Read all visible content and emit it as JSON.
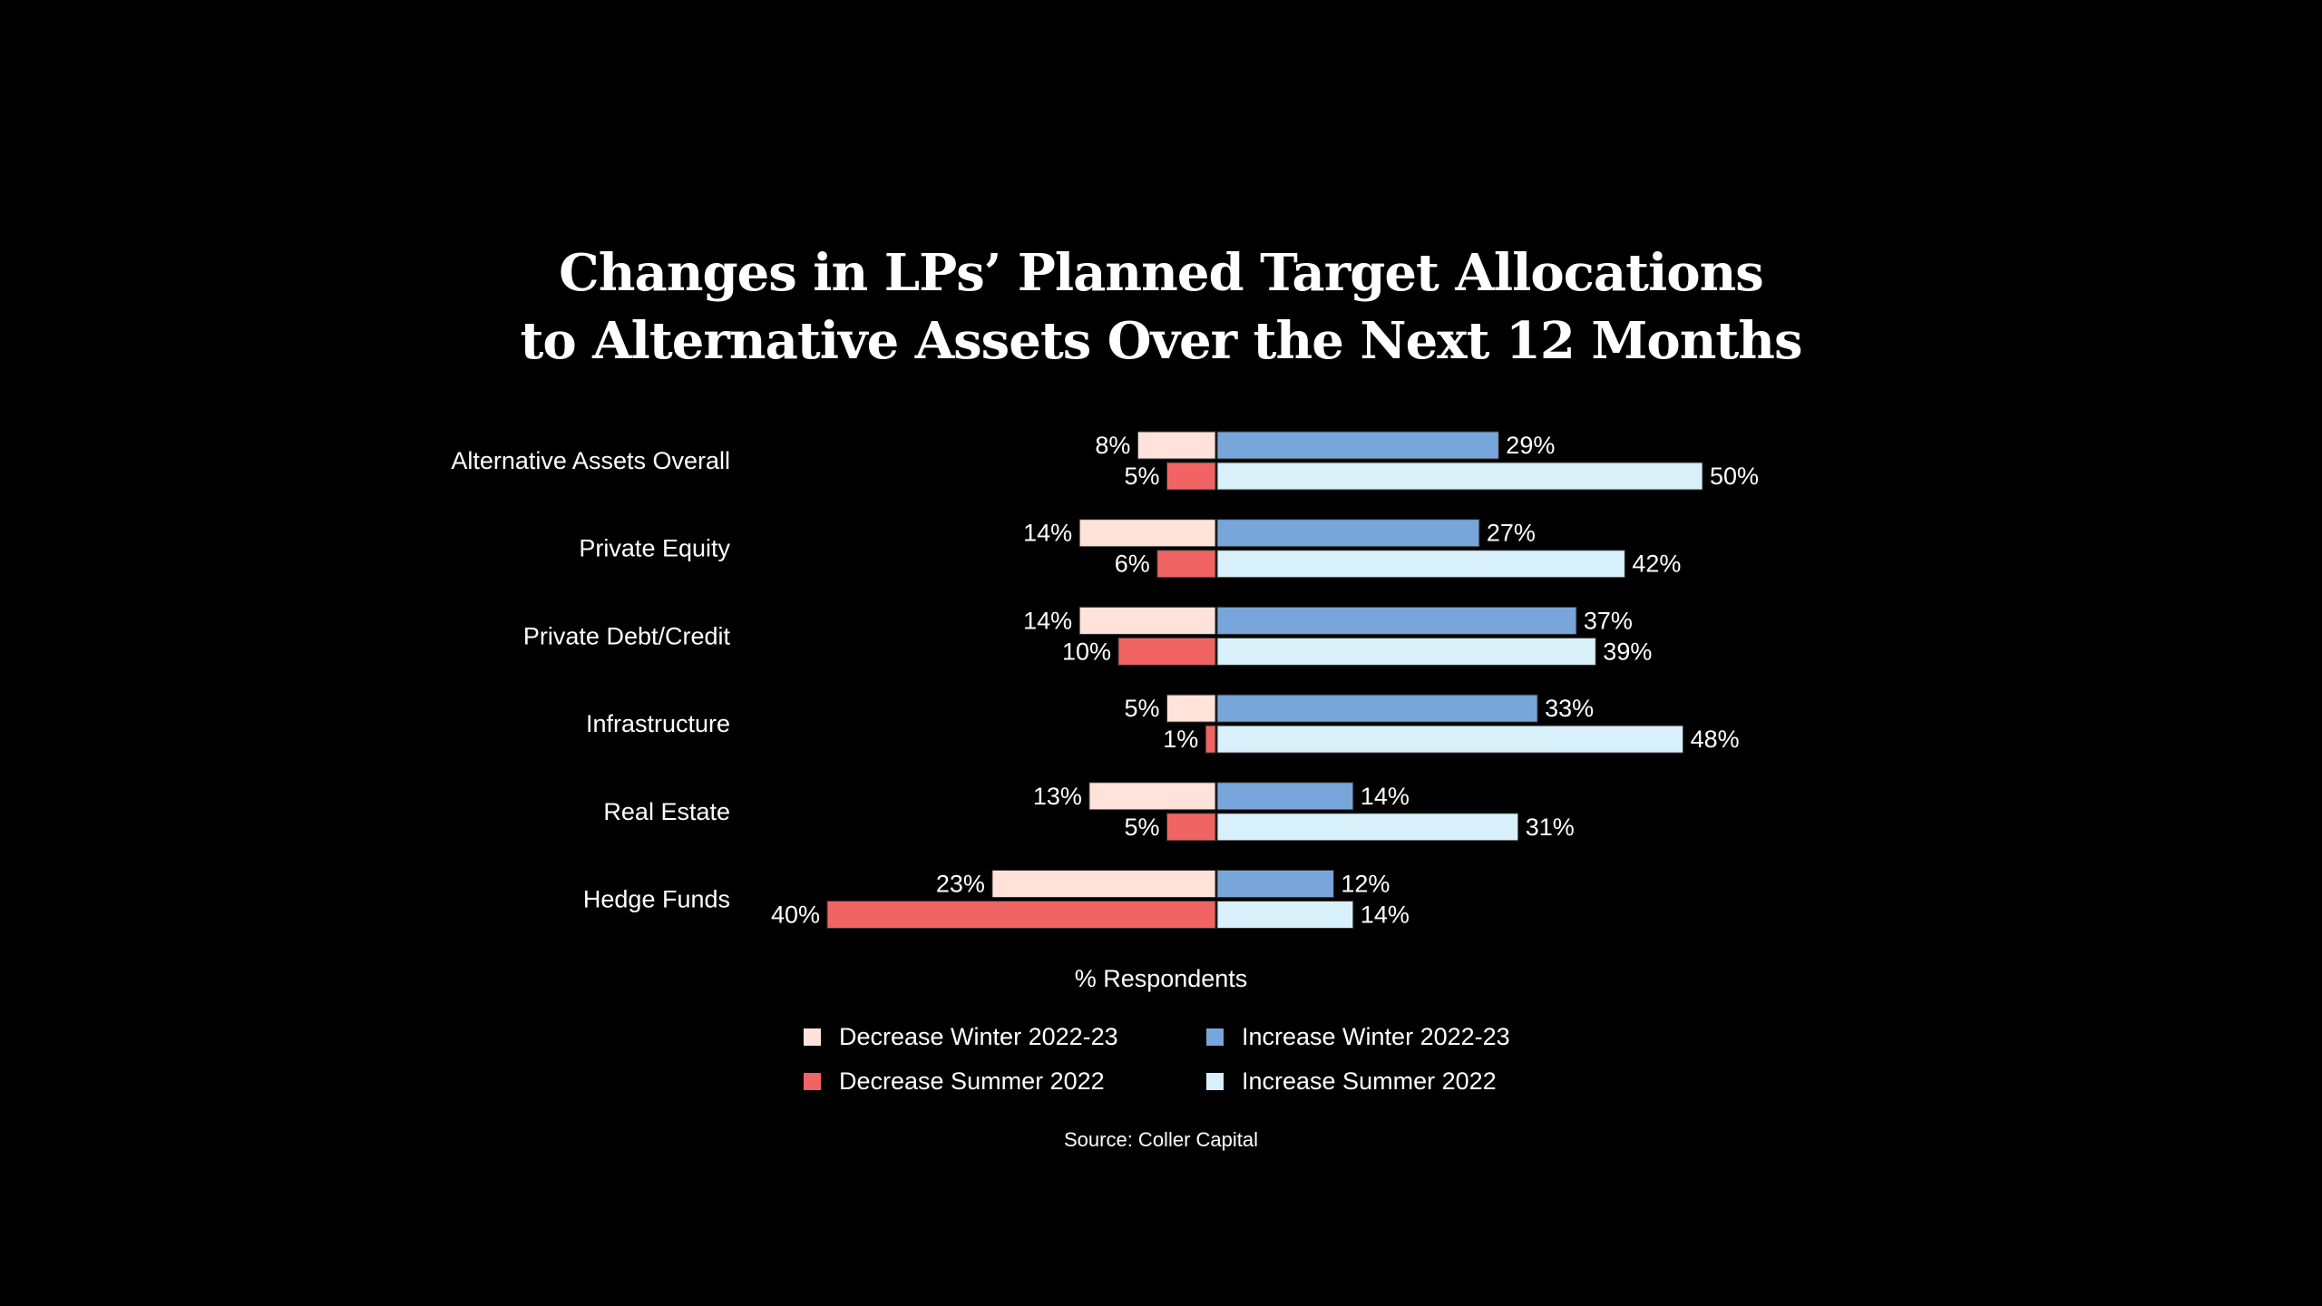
{
  "chart_data": {
    "type": "bar",
    "orientation": "horizontal-diverging",
    "title_line1": "Changes in LPs’ Planned Target Allocations",
    "title_line2": "to Alternative Assets Over the Next 12 Months",
    "xlabel": "% Respondents",
    "source": "Source: Coller Capital",
    "categories": [
      "Alternative Assets Overall",
      "Private Equity",
      "Private Debt/Credit",
      "Infrastructure",
      "Real Estate",
      "Hedge Funds"
    ],
    "series": [
      {
        "name": "Decrease Winter 2022-23",
        "side": "left",
        "color": "#FFE3DA",
        "values": [
          8,
          14,
          14,
          5,
          13,
          23
        ]
      },
      {
        "name": "Decrease Summer 2022",
        "side": "left",
        "color": "#F06464",
        "values": [
          5,
          6,
          10,
          1,
          5,
          40
        ]
      },
      {
        "name": "Increase Winter 2022-23",
        "side": "right",
        "color": "#78A6DA",
        "values": [
          29,
          27,
          37,
          33,
          14,
          12
        ]
      },
      {
        "name": "Increase Summer 2022",
        "side": "right",
        "color": "#D7F0FA",
        "values": [
          50,
          42,
          39,
          48,
          31,
          14
        ]
      }
    ],
    "value_suffix": "%",
    "grid": false,
    "legend_position": "bottom"
  }
}
